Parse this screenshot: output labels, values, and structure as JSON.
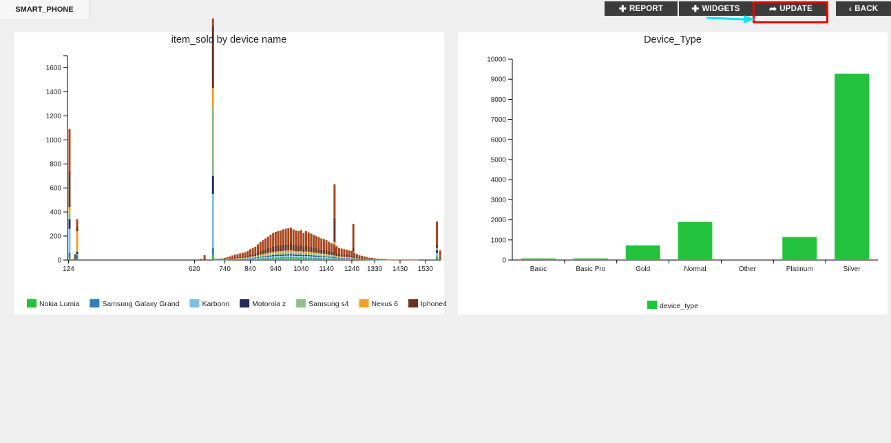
{
  "tab": {
    "label": "SMART_PHONE"
  },
  "toolbar": {
    "report_label": "REPORT",
    "widgets_label": "WIDGETS",
    "update_label": "UPDATE",
    "back_label": "BACK"
  },
  "left_chart": {
    "title": "item_sold by device name"
  },
  "right_chart": {
    "title": "Device_Type"
  },
  "chart_data": [
    {
      "type": "bar",
      "stacked": true,
      "title": "item_sold by device name",
      "xlabel": "",
      "ylabel": "",
      "ylim": [
        0,
        1700
      ],
      "yticks": [
        0,
        200,
        400,
        600,
        800,
        1000,
        1200,
        1400,
        1600
      ],
      "xlim": [
        120,
        1590
      ],
      "xticks": [
        124,
        620,
        740,
        840,
        940,
        1040,
        1140,
        1240,
        1330,
        1430,
        1530
      ],
      "legend_position": "bottom",
      "series": [
        {
          "name": "Nokia Lumia",
          "color": "#22c33a"
        },
        {
          "name": "Samsung Galaxy Grand",
          "color": "#2f7fbe"
        },
        {
          "name": "Karbonn",
          "color": "#7fbfe7"
        },
        {
          "name": "Motorola z",
          "color": "#232b5e"
        },
        {
          "name": "Samsung s4",
          "color": "#8fbf8a"
        },
        {
          "name": "Nexus 6",
          "color": "#f7a11a"
        },
        {
          "name": "Iphone4",
          "color": "#6b3220"
        },
        {
          "name": "",
          "color": "#a9461c"
        }
      ],
      "stacks": [
        {
          "x": 128,
          "values": [
            20,
            40,
            200,
            80,
            60,
            40,
            300,
            350
          ]
        },
        {
          "x": 150,
          "values": [
            0,
            0,
            0,
            0,
            0,
            0,
            0,
            50
          ]
        },
        {
          "x": 158,
          "values": [
            10,
            30,
            10,
            20,
            10,
            160,
            40,
            60
          ]
        },
        {
          "x": 645,
          "values": [
            0,
            0,
            0,
            0,
            0,
            0,
            0,
            10
          ]
        },
        {
          "x": 660,
          "values": [
            0,
            0,
            0,
            0,
            0,
            0,
            0,
            40
          ]
        },
        {
          "x": 693,
          "values": [
            50,
            50,
            450,
            150,
            570,
            160,
            520,
            60
          ]
        },
        {
          "x": 1172,
          "values": [
            20,
            0,
            40,
            40,
            20,
            30,
            200,
            280
          ]
        },
        {
          "x": 1246,
          "values": [
            20,
            0,
            30,
            0,
            20,
            0,
            30,
            200
          ]
        },
        {
          "x": 1575,
          "values": [
            30,
            0,
            30,
            20,
            20,
            0,
            30,
            190
          ]
        },
        {
          "x": 1588,
          "values": [
            0,
            0,
            0,
            0,
            0,
            0,
            0,
            80
          ]
        }
      ],
      "dense_region": {
        "x_start": 700,
        "x_end": 1505,
        "step": 10,
        "totals": [
          10,
          10,
          12,
          14,
          18,
          25,
          30,
          38,
          45,
          50,
          55,
          60,
          65,
          75,
          90,
          100,
          110,
          130,
          150,
          165,
          180,
          195,
          210,
          225,
          235,
          240,
          245,
          255,
          260,
          265,
          270,
          255,
          245,
          240,
          250,
          225,
          240,
          230,
          220,
          210,
          200,
          190,
          180,
          175,
          165,
          150,
          140,
          130,
          115,
          100,
          95,
          90,
          85,
          80,
          75,
          60,
          50,
          40,
          35,
          30,
          25,
          20,
          18,
          15,
          12,
          10,
          8,
          6,
          4,
          3,
          2,
          2,
          1,
          1,
          1,
          1,
          1,
          1,
          1,
          1,
          1
        ]
      }
    },
    {
      "type": "bar",
      "title": "Device_Type",
      "categories": [
        "Basic",
        "Basic Pro",
        "Gold",
        "Normal",
        "Other",
        "Platinum",
        "Silver"
      ],
      "series": [
        {
          "name": "device_type",
          "color": "#22c33a",
          "values": [
            80,
            80,
            730,
            1900,
            0,
            1150,
            9280
          ]
        }
      ],
      "ylim": [
        0,
        10000
      ],
      "yticks": [
        0,
        1000,
        2000,
        3000,
        4000,
        5000,
        6000,
        7000,
        8000,
        9000,
        10000
      ],
      "legend_position": "bottom"
    }
  ]
}
